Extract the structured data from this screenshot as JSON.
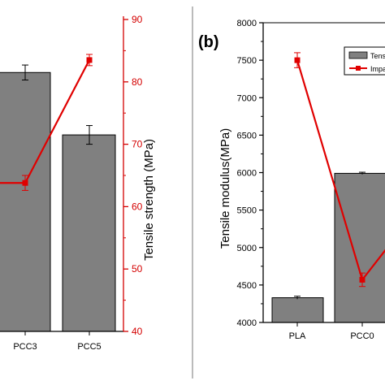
{
  "chart_data": [
    {
      "panel_label": "",
      "type": "bar",
      "categories": [
        "PCC3",
        "PCC5"
      ],
      "x_tick_labels": [
        "PCC3",
        "PCC5"
      ],
      "series": [
        {
          "kind": "bar",
          "values": [
            81.5,
            71.5
          ],
          "errors": [
            1.2,
            1.5
          ],
          "color": "#808080"
        },
        {
          "kind": "line",
          "values": [
            63.8,
            83.5
          ],
          "errors": [
            1.2,
            0.9
          ],
          "color": "#e00000"
        }
      ],
      "y2": {
        "label": "Tensile strength (MPa)",
        "ylim": [
          40,
          90
        ],
        "ticks": [
          40,
          50,
          60,
          70,
          80,
          90
        ],
        "color": "#d40000"
      }
    },
    {
      "panel_label": "(b)",
      "type": "bar",
      "categories": [
        "PLA",
        "PCC0"
      ],
      "x_tick_labels": [
        "PLA",
        "PCC0"
      ],
      "ylabel": "Tensile modulus(MPa)",
      "ylim": [
        4000,
        8000
      ],
      "y_ticks": [
        4000,
        4500,
        5000,
        5500,
        6000,
        6500,
        7000,
        7500,
        8000
      ],
      "legend": {
        "placement": "top-right",
        "entries": [
          "Tens",
          "Impa"
        ]
      },
      "series": [
        {
          "kind": "bar",
          "values": [
            4330,
            5990
          ],
          "errors": [
            20,
            15
          ],
          "color": "#808080"
        },
        {
          "kind": "line",
          "values": [
            7500,
            4570
          ],
          "errors": [
            100,
            90
          ],
          "color": "#e00000",
          "continues_right_to": 5070
        }
      ]
    }
  ]
}
